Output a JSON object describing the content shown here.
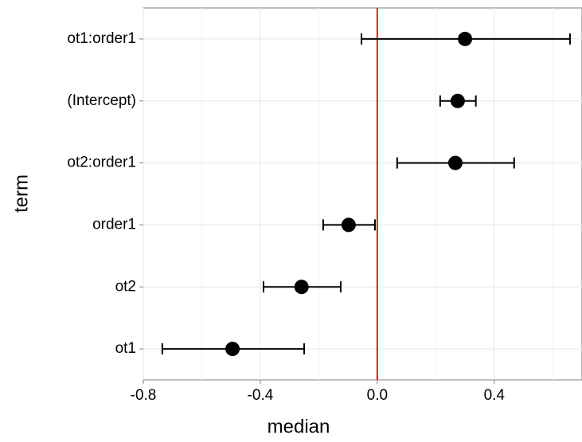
{
  "chart_data": {
    "type": "dotwhisker",
    "xlabel": "median",
    "ylabel": "term",
    "categories": [
      "ot1:order1",
      "(Intercept)",
      "ot2:order1",
      "order1",
      "ot2",
      "ot1"
    ],
    "values": [
      0.3,
      0.275,
      0.267,
      -0.098,
      -0.259,
      -0.495
    ],
    "lower": [
      -0.054,
      0.215,
      0.068,
      -0.185,
      -0.389,
      -0.735
    ],
    "upper": [
      0.659,
      0.337,
      0.468,
      -0.008,
      -0.125,
      -0.25
    ],
    "color": "#000000",
    "xlim": [
      -0.8,
      0.7
    ],
    "xticks": [
      {
        "value": -0.8,
        "label": "-0.8"
      },
      {
        "value": -0.4,
        "label": "-0.4"
      },
      {
        "value": 0,
        "label": "0.0"
      },
      {
        "value": 0.4,
        "label": "0.4"
      }
    ],
    "xminor": [
      -0.6,
      -0.2,
      0.2,
      0.6
    ],
    "reference_line": {
      "value": 0,
      "color": "#e31a1c"
    },
    "grid": true
  }
}
